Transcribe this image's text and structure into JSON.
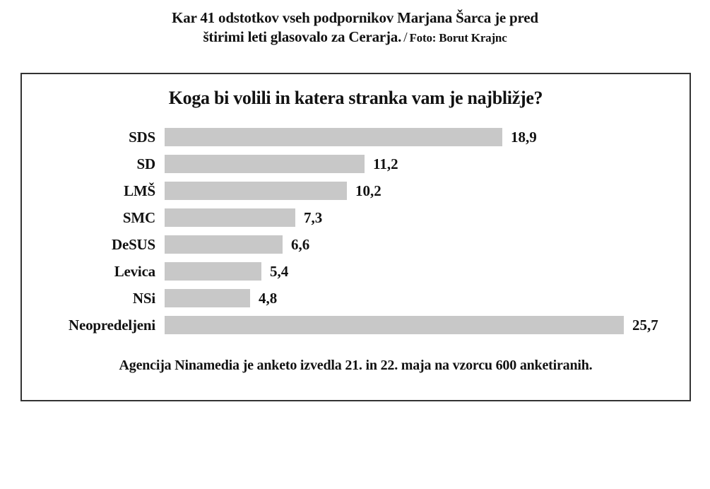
{
  "caption": {
    "line1": "Kar 41 odstotkov vseh podpornikov Marjana Šarca je pred",
    "line2": "štirimi leti glasovalo za Cerarja.",
    "separator": "/",
    "credit": "Foto: Borut Krajnc"
  },
  "chart": {
    "title": "Koga bi volili in katera stranka vam je najbližje?",
    "footnote": "Agencija Ninamedia je anketo izvedla 21. in 22. maja na vzorcu 600 anketiranih."
  },
  "chart_data": {
    "type": "bar",
    "orientation": "horizontal",
    "title": "Koga bi volili in katera stranka vam je najbližje?",
    "categories": [
      "SDS",
      "SD",
      "LMŠ",
      "SMC",
      "DeSUS",
      "Levica",
      "NSi",
      "Neopredeljeni"
    ],
    "values": [
      18.9,
      11.2,
      10.2,
      7.3,
      6.6,
      5.4,
      4.8,
      25.7
    ],
    "value_labels": [
      "18,9",
      "11,2",
      "10,2",
      "7,3",
      "6,6",
      "5,4",
      "4,8",
      "25,7"
    ],
    "xlabel": "",
    "ylabel": "",
    "xlim": [
      0,
      26.5
    ],
    "grid": false,
    "legend": null,
    "bar_color": "#c8c8c8",
    "annotation": "Agencija Ninamedia je anketo izvedla 21. in 22. maja na vzorcu 600 anketiranih."
  },
  "colors": {
    "background": "#ffffff",
    "bar": "#c8c8c8",
    "text": "#121212",
    "box_border": "#333333"
  }
}
